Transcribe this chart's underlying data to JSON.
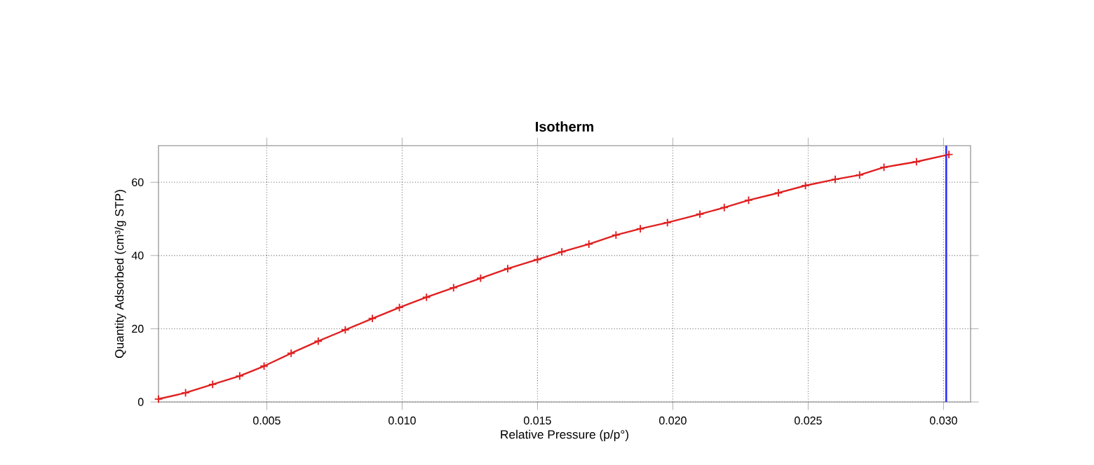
{
  "chart_data": {
    "type": "line",
    "title": "Isotherm",
    "xlabel": "Relative Pressure (p/p°)",
    "ylabel": "Quantity Adsorbed (cm³/g STP)",
    "series": [
      {
        "color": "#e02020",
        "x": [
          0.001,
          0.002,
          0.003,
          0.004,
          0.0049,
          0.0059,
          0.0069,
          0.0079,
          0.0089,
          0.0099,
          0.0109,
          0.0119,
          0.0129,
          0.0139,
          0.015,
          0.0159,
          0.0169,
          0.0179,
          0.0188,
          0.0198,
          0.021,
          0.0219,
          0.0228,
          0.0239,
          0.0249,
          0.026,
          0.0269,
          0.0278,
          0.029,
          0.0302
        ],
        "values": [
          0.8,
          2.5,
          4.8,
          7.1,
          9.8,
          13.3,
          16.6,
          19.7,
          22.8,
          25.8,
          28.6,
          31.2,
          33.8,
          36.4,
          38.9,
          41.0,
          43.1,
          45.6,
          47.3,
          49.0,
          51.3,
          53.1,
          55.1,
          57.1,
          59.1,
          60.8,
          62.0,
          64.1,
          65.6,
          67.6
        ]
      }
    ],
    "xlim": [
      0.001,
      0.031
    ],
    "ylim": [
      0,
      70
    ],
    "xticks": [
      0.005,
      {
        "value": 0.01,
        "label": "0.010"
      },
      0.015,
      {
        "value": 0.02,
        "label": "0.020"
      },
      0.025,
      {
        "value": 0.03,
        "label": "0.030"
      }
    ],
    "yticks": [
      0,
      20,
      40,
      60
    ],
    "ref_lines": [
      {
        "axis": "x",
        "value": 0.0301,
        "color": "#3030ff"
      }
    ],
    "grid": true,
    "marker": "cross",
    "line_style": "solid"
  }
}
